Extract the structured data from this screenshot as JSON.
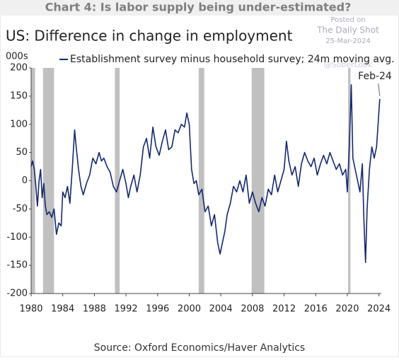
{
  "chart_data": {
    "type": "line",
    "header": "Chart 4: Is labor supply being under-estimated?",
    "title": "US: Difference in change in employment",
    "y_unit": "000s",
    "annotation": "Feb-24",
    "source": "Source: Oxford Economics/Haver Analytics",
    "watermark": [
      "Posted on",
      "The Daily Shot",
      "25-Mar-2024",
      "@SoberLook"
    ],
    "xlim": [
      1980,
      2024.3
    ],
    "ylim": [
      -200,
      200
    ],
    "xticks": [
      1980,
      1984,
      1988,
      1992,
      1996,
      2000,
      2004,
      2008,
      2012,
      2016,
      2020,
      2024
    ],
    "yticks": [
      -200,
      -150,
      -100,
      -50,
      0,
      50,
      100,
      150,
      200
    ],
    "recession_color": "#c0c0c0",
    "recessions": [
      [
        1980.0,
        1980.5
      ],
      [
        1981.5,
        1982.9
      ],
      [
        1990.6,
        1991.2
      ],
      [
        2001.2,
        2001.9
      ],
      [
        2007.9,
        2009.5
      ],
      [
        2020.1,
        2020.4
      ]
    ],
    "series": [
      {
        "name": "Establishment survey minus household survey; 24m moving avg.",
        "color": "#14286e",
        "x": [
          1980.0,
          1980.2,
          1980.4,
          1980.6,
          1980.8,
          1981.0,
          1981.2,
          1981.4,
          1981.6,
          1981.8,
          1982.0,
          1982.3,
          1982.6,
          1982.9,
          1983.2,
          1983.5,
          1983.8,
          1984.0,
          1984.3,
          1984.6,
          1984.9,
          1985.2,
          1985.5,
          1985.7,
          1986.0,
          1986.3,
          1986.6,
          1987.0,
          1987.4,
          1987.8,
          1988.2,
          1988.6,
          1988.9,
          1989.2,
          1989.6,
          1990.0,
          1990.4,
          1990.8,
          1991.2,
          1991.6,
          1992.0,
          1992.3,
          1992.6,
          1993.0,
          1993.4,
          1993.8,
          1994.2,
          1994.6,
          1995.0,
          1995.4,
          1995.8,
          1996.2,
          1996.6,
          1997.0,
          1997.4,
          1997.8,
          1998.2,
          1998.6,
          1999.0,
          1999.4,
          1999.7,
          2000.0,
          2000.3,
          2000.6,
          2000.9,
          2001.2,
          2001.6,
          2002.0,
          2002.4,
          2002.8,
          2003.2,
          2003.6,
          2003.9,
          2004.2,
          2004.5,
          2004.8,
          2005.2,
          2005.6,
          2006.0,
          2006.4,
          2006.8,
          2007.2,
          2007.6,
          2008.0,
          2008.4,
          2008.8,
          2009.2,
          2009.6,
          2010.0,
          2010.4,
          2010.8,
          2011.2,
          2011.6,
          2012.0,
          2012.3,
          2012.6,
          2013.0,
          2013.4,
          2013.8,
          2014.2,
          2014.6,
          2015.0,
          2015.4,
          2015.8,
          2016.2,
          2016.6,
          2017.0,
          2017.4,
          2017.8,
          2018.2,
          2018.6,
          2019.0,
          2019.4,
          2019.8,
          2020.0,
          2020.3,
          2020.5,
          2020.7,
          2021.0,
          2021.3,
          2021.6,
          2021.9,
          2022.1,
          2022.3,
          2022.5,
          2022.8,
          2023.1,
          2023.4,
          2023.7,
          2024.1
        ],
        "values": [
          25,
          35,
          20,
          -10,
          -45,
          0,
          20,
          -30,
          -5,
          -45,
          -60,
          -55,
          -65,
          -50,
          -95,
          -75,
          -80,
          -20,
          -30,
          -10,
          -40,
          20,
          90,
          60,
          20,
          -10,
          -25,
          -5,
          10,
          40,
          30,
          50,
          35,
          40,
          25,
          15,
          -10,
          -20,
          0,
          20,
          -5,
          -30,
          -10,
          10,
          -20,
          10,
          60,
          75,
          40,
          95,
          60,
          45,
          70,
          90,
          55,
          60,
          90,
          85,
          100,
          95,
          120,
          100,
          20,
          -5,
          0,
          -25,
          -15,
          -55,
          -45,
          -80,
          -60,
          -110,
          -130,
          -110,
          -90,
          -60,
          -40,
          -10,
          -20,
          0,
          -20,
          10,
          -40,
          -20,
          -40,
          -55,
          -30,
          -45,
          -15,
          -25,
          10,
          -20,
          0,
          20,
          70,
          35,
          10,
          25,
          -10,
          30,
          50,
          35,
          25,
          40,
          10,
          30,
          45,
          30,
          50,
          35,
          20,
          30,
          10,
          20,
          -20,
          80,
          170,
          40,
          20,
          0,
          -20,
          30,
          -70,
          -145,
          -50,
          20,
          60,
          40,
          60,
          145
        ]
      }
    ]
  }
}
